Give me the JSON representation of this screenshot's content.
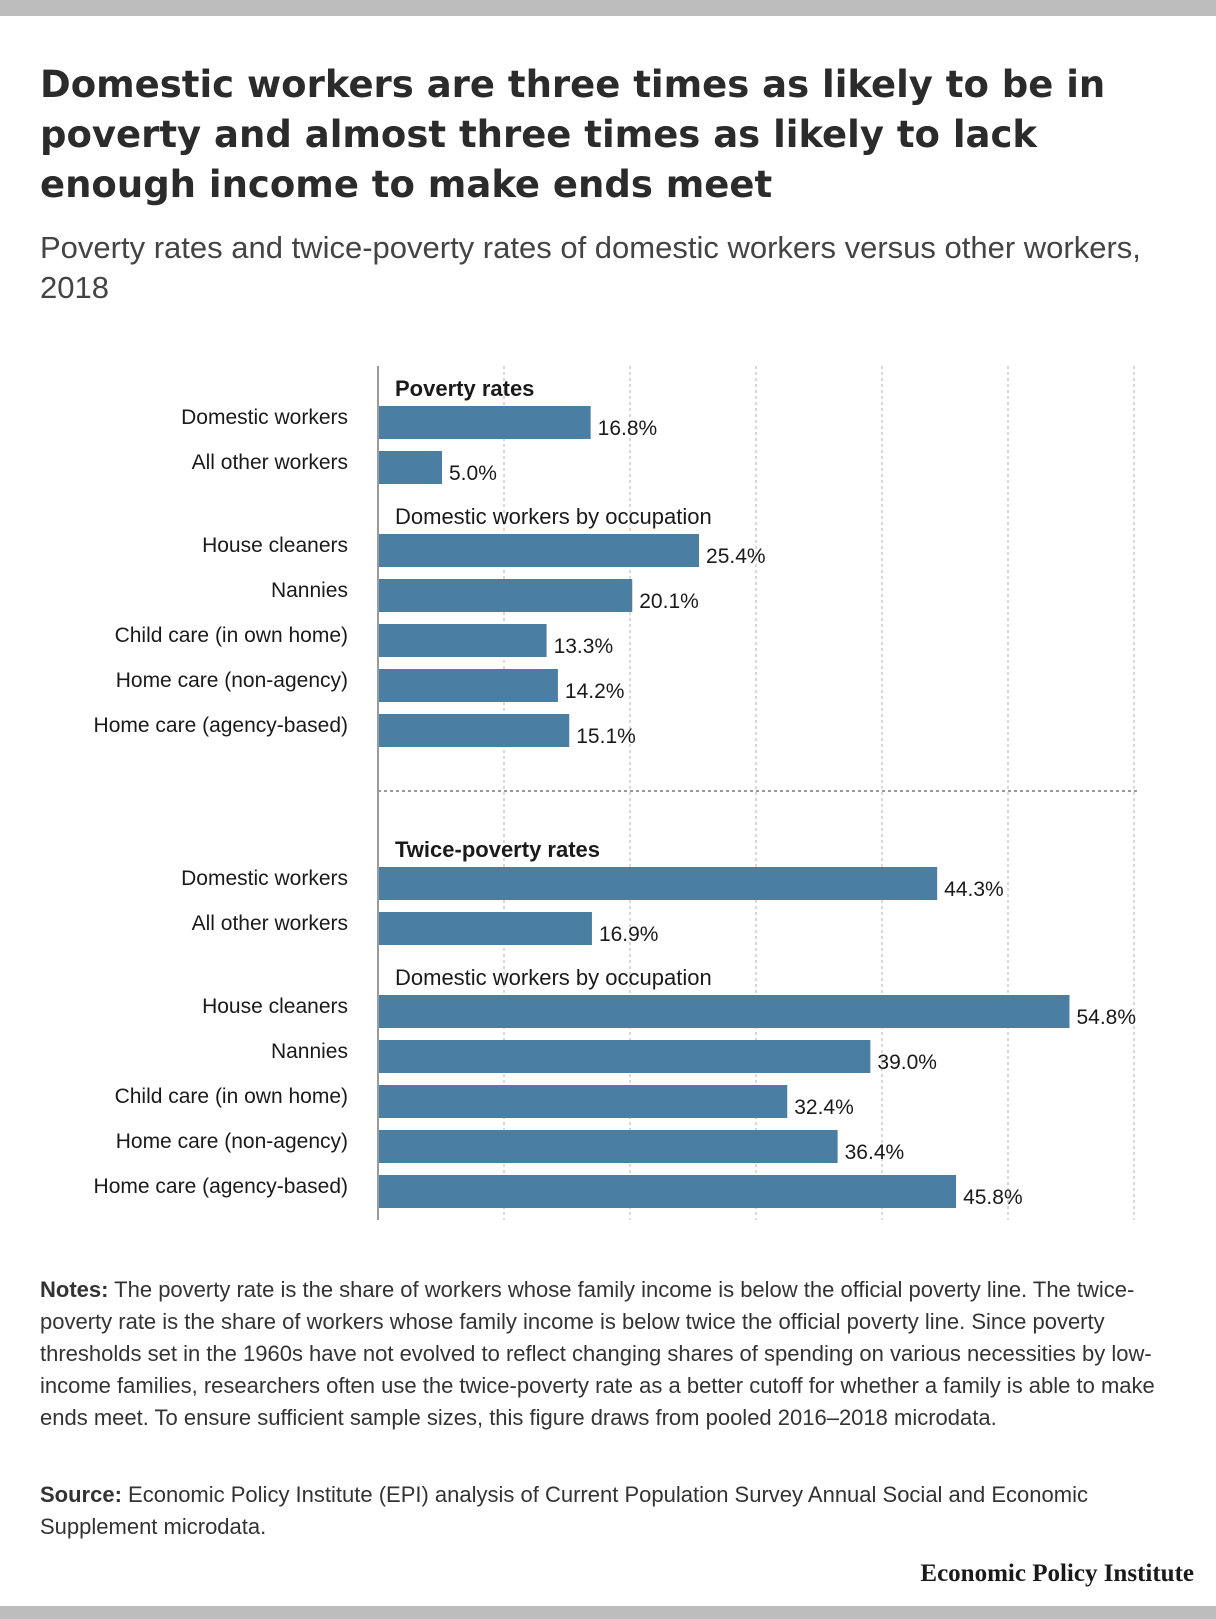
{
  "header": {
    "title": "Domestic workers are three times as likely to be in poverty and almost three times as likely to lack enough income to make ends meet",
    "subtitle": "Poverty rates and twice-poverty rates of domestic workers versus other workers, 2018"
  },
  "chart_data": {
    "type": "bar",
    "orientation": "horizontal",
    "bar_color": "#4a7fa3",
    "grid": true,
    "xlim": [
      0,
      60
    ],
    "value_format": "percent",
    "panels": [
      {
        "title": "Poverty rates",
        "groups": [
          {
            "label": "",
            "categories": [
              "Domestic workers",
              "All other workers"
            ],
            "values": [
              16.8,
              5.0
            ]
          },
          {
            "label": "Domestic workers by occupation",
            "categories": [
              "House cleaners",
              "Nannies",
              "Child care (in own home)",
              "Home care (non-agency)",
              "Home care (agency-based)"
            ],
            "values": [
              25.4,
              20.1,
              13.3,
              14.2,
              15.1
            ]
          }
        ]
      },
      {
        "title": "Twice-poverty rates",
        "groups": [
          {
            "label": "",
            "categories": [
              "Domestic workers",
              "All other workers"
            ],
            "values": [
              44.3,
              16.9
            ]
          },
          {
            "label": "Domestic workers by occupation",
            "categories": [
              "House cleaners",
              "Nannies",
              "Child care (in own home)",
              "Home care (non-agency)",
              "Home care (agency-based)"
            ],
            "values": [
              54.8,
              39.0,
              32.4,
              36.4,
              45.8
            ]
          }
        ]
      }
    ]
  },
  "footer": {
    "notes_label": "Notes:",
    "notes_text": "The poverty rate is the share of workers whose family income is below the official poverty line. The twice-poverty rate is the share of workers whose family income is below twice the official poverty line. Since poverty thresholds set in the 1960s have not evolved to reflect changing shares of spending on various necessities by low-income families, researchers often use the twice-poverty rate as a better cutoff for whether a family is able to make ends meet. To ensure sufficient sample sizes, this figure draws from pooled 2016–2018 microdata.",
    "source_label": "Source:",
    "source_text": "Economic Policy Institute (EPI) analysis of Current Population Survey Annual Social and Economic Supplement microdata.",
    "logo": "Economic Policy Institute"
  }
}
